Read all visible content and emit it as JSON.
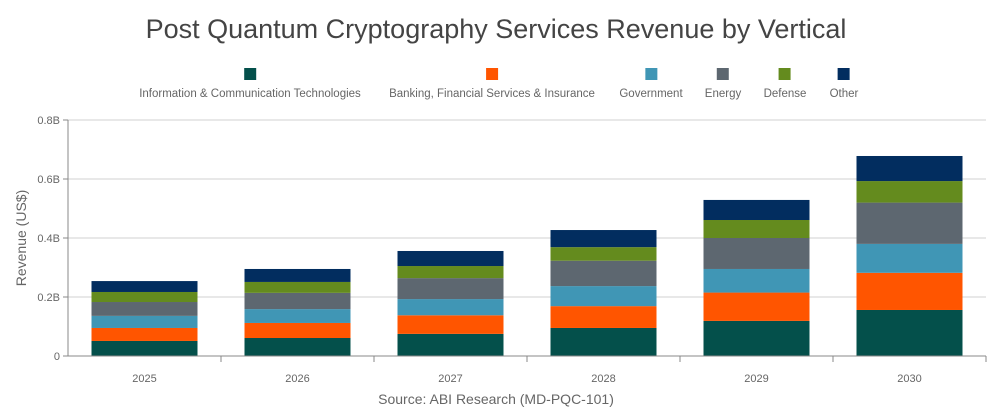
{
  "chart_data": {
    "type": "bar",
    "stacked": true,
    "title": "Post Quantum Cryptography Services Revenue by Vertical",
    "ylabel": "Revenue (US$)",
    "xlabel": "",
    "source": "Source: ABI Research (MD-PQC-101)",
    "categories": [
      "2025",
      "2026",
      "2027",
      "2028",
      "2029",
      "2030"
    ],
    "ylim": [
      0,
      0.8
    ],
    "yticks": [
      0,
      0.2,
      0.4,
      0.6,
      0.8
    ],
    "ytick_labels": [
      "0",
      "0.2B",
      "0.4B",
      "0.6B",
      "0.8B"
    ],
    "grid": true,
    "legend_position": "top",
    "series": [
      {
        "name": "Information & Communication Technologies",
        "color": "#04504B",
        "values": [
          0.051,
          0.061,
          0.075,
          0.095,
          0.119,
          0.156
        ]
      },
      {
        "name": "Banking, Financial Services & Insurance",
        "color": "#FF5500",
        "values": [
          0.044,
          0.051,
          0.063,
          0.074,
          0.096,
          0.126
        ]
      },
      {
        "name": "Government",
        "color": "#4096B5",
        "values": [
          0.041,
          0.047,
          0.055,
          0.068,
          0.08,
          0.098
        ]
      },
      {
        "name": "Energy",
        "color": "#5D6770",
        "values": [
          0.047,
          0.055,
          0.071,
          0.086,
          0.105,
          0.14
        ]
      },
      {
        "name": "Defense",
        "color": "#648B1E",
        "values": [
          0.034,
          0.037,
          0.041,
          0.046,
          0.061,
          0.073
        ]
      },
      {
        "name": "Other",
        "color": "#022D5F",
        "values": [
          0.037,
          0.044,
          0.051,
          0.058,
          0.068,
          0.085
        ]
      }
    ]
  }
}
